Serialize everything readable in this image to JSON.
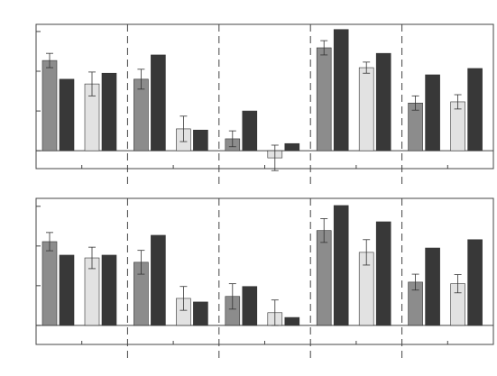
{
  "chart_data": [
    {
      "type": "bar",
      "categories": [
        null,
        null,
        null,
        null,
        null
      ],
      "series": [
        {
          "color": "#8c8c8c",
          "values": [
            2.27,
            1.8,
            0.3,
            2.59,
            1.2
          ],
          "errors": [
            0.18,
            0.25,
            0.2,
            0.18,
            0.18
          ]
        },
        {
          "color": "#383838",
          "values": [
            1.8,
            2.41,
            1.0,
            3.05,
            1.91
          ]
        },
        {
          "color": "#e2e2e2",
          "values": [
            1.68,
            0.55,
            -0.18,
            2.09,
            1.23
          ],
          "errors": [
            0.3,
            0.32,
            0.32,
            0.14,
            0.18
          ]
        },
        {
          "color": "#383838",
          "values": [
            1.95,
            0.52,
            0.18,
            2.45,
            2.07
          ]
        }
      ],
      "ylim": [
        -0.45,
        3.18
      ],
      "yticks": [
        0,
        1,
        2,
        3
      ]
    },
    {
      "type": "bar",
      "categories": [
        null,
        null,
        null,
        null,
        null
      ],
      "series": [
        {
          "color": "#8c8c8c",
          "values": [
            2.11,
            1.59,
            0.73,
            2.39,
            1.09
          ],
          "errors": [
            0.23,
            0.3,
            0.32,
            0.3,
            0.2
          ]
        },
        {
          "color": "#383838",
          "values": [
            1.77,
            2.27,
            0.98,
            3.02,
            1.95
          ]
        },
        {
          "color": "#e2e2e2",
          "values": [
            1.7,
            0.68,
            0.32,
            1.84,
            1.05
          ],
          "errors": [
            0.27,
            0.3,
            0.32,
            0.32,
            0.23
          ]
        },
        {
          "color": "#383838",
          "values": [
            1.77,
            0.59,
            0.2,
            2.61,
            2.16
          ]
        }
      ],
      "ylim": [
        -0.48,
        3.2
      ],
      "yticks": [
        0,
        1,
        2,
        3
      ]
    }
  ]
}
